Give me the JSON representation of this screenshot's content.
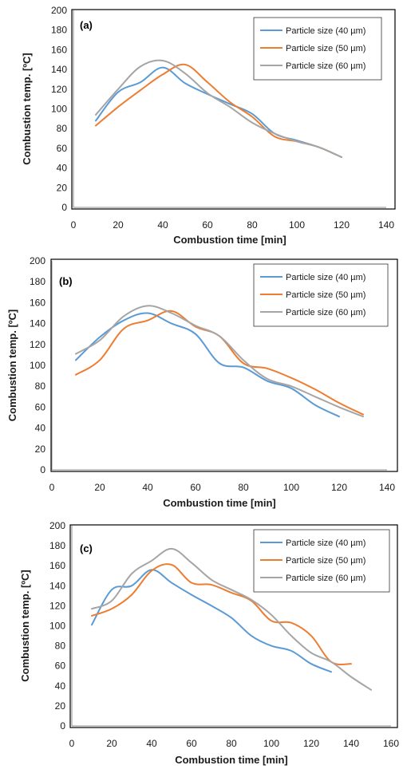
{
  "colors": {
    "s40": "#5B9BD5",
    "s50": "#ED7D31",
    "s60": "#A5A5A5",
    "frame": "#000000"
  },
  "chart_data": [
    {
      "type": "line",
      "panel_label": "(a)",
      "xlabel": "Combustion time [min]",
      "ylabel": "Combustion temp. [ºC]",
      "xlim": [
        0,
        140
      ],
      "ylim": [
        0,
        200
      ],
      "xticks": [
        0,
        20,
        40,
        60,
        80,
        100,
        120,
        140
      ],
      "yticks": [
        0,
        20,
        40,
        60,
        80,
        100,
        120,
        140,
        160,
        180,
        200
      ],
      "grid": false,
      "legend": "top-right",
      "series": [
        {
          "name": "Particle size (40 µm)",
          "x": [
            10,
            20,
            30,
            40,
            50,
            60,
            70,
            80,
            90,
            100,
            110,
            120
          ],
          "y": [
            88,
            117,
            127,
            142,
            126,
            115,
            105,
            95,
            75,
            68,
            61,
            51
          ]
        },
        {
          "name": "Particle size (50 µm)",
          "x": [
            10,
            20,
            30,
            40,
            50,
            60,
            70,
            80,
            90,
            100,
            110,
            120
          ],
          "y": [
            83,
            102,
            119,
            135,
            145,
            127,
            107,
            92,
            72,
            67,
            61,
            51
          ]
        },
        {
          "name": "Particle size (60 µm)",
          "x": [
            10,
            20,
            30,
            40,
            50,
            60,
            70,
            80,
            90,
            100,
            110,
            120
          ],
          "y": [
            94,
            120,
            143,
            149,
            136,
            116,
            102,
            86,
            75,
            67,
            61,
            51
          ]
        }
      ]
    },
    {
      "type": "line",
      "panel_label": "(b)",
      "xlabel": "Combustion time [min]",
      "ylabel": "Combustion temp. [ºC]",
      "xlim": [
        0,
        140
      ],
      "ylim": [
        0,
        200
      ],
      "xticks": [
        0,
        20,
        40,
        60,
        80,
        100,
        120,
        140
      ],
      "yticks": [
        0,
        20,
        40,
        60,
        80,
        100,
        120,
        140,
        160,
        180,
        200
      ],
      "grid": false,
      "legend": "top-right",
      "series": [
        {
          "name": "Particle size (40 µm)",
          "x": [
            10,
            20,
            30,
            40,
            50,
            60,
            70,
            80,
            90,
            100,
            110,
            120
          ],
          "y": [
            105,
            127,
            143,
            150,
            140,
            130,
            102,
            98,
            85,
            78,
            62,
            51
          ]
        },
        {
          "name": "Particle size (50 µm)",
          "x": [
            10,
            20,
            30,
            40,
            50,
            60,
            70,
            80,
            90,
            100,
            110,
            120,
            130
          ],
          "y": [
            91,
            105,
            135,
            143,
            152,
            137,
            128,
            102,
            97,
            88,
            77,
            64,
            53
          ]
        },
        {
          "name": "Particle size (60 µm)",
          "x": [
            10,
            20,
            30,
            40,
            50,
            60,
            70,
            80,
            90,
            100,
            110,
            120,
            130
          ],
          "y": [
            111,
            124,
            147,
            157,
            150,
            138,
            128,
            105,
            87,
            80,
            70,
            60,
            51
          ]
        }
      ]
    },
    {
      "type": "line",
      "panel_label": "(c)",
      "xlabel": "Combustion time [min]",
      "ylabel": "Combustion temp. [ºC]",
      "xlim": [
        0,
        160
      ],
      "ylim": [
        0,
        200
      ],
      "xticks": [
        0,
        20,
        40,
        60,
        80,
        100,
        120,
        140,
        160
      ],
      "yticks": [
        0,
        20,
        40,
        60,
        80,
        100,
        120,
        140,
        160,
        180,
        200
      ],
      "grid": false,
      "legend": "top-right",
      "series": [
        {
          "name": "Particle size (40 µm)",
          "x": [
            10,
            20,
            30,
            40,
            50,
            60,
            70,
            80,
            90,
            100,
            110,
            120,
            130
          ],
          "y": [
            101,
            136,
            140,
            156,
            143,
            131,
            120,
            108,
            90,
            80,
            75,
            62,
            54
          ]
        },
        {
          "name": "Particle size (50 µm)",
          "x": [
            10,
            20,
            30,
            40,
            50,
            60,
            70,
            80,
            90,
            100,
            110,
            120,
            130,
            140
          ],
          "y": [
            110,
            117,
            131,
            155,
            161,
            143,
            141,
            133,
            125,
            105,
            103,
            90,
            64,
            62
          ]
        },
        {
          "name": "Particle size (60 µm)",
          "x": [
            10,
            20,
            30,
            40,
            50,
            60,
            70,
            80,
            90,
            100,
            110,
            120,
            130,
            140,
            150
          ],
          "y": [
            117,
            125,
            152,
            165,
            177,
            163,
            146,
            136,
            126,
            111,
            90,
            73,
            64,
            49,
            36
          ]
        }
      ]
    }
  ]
}
